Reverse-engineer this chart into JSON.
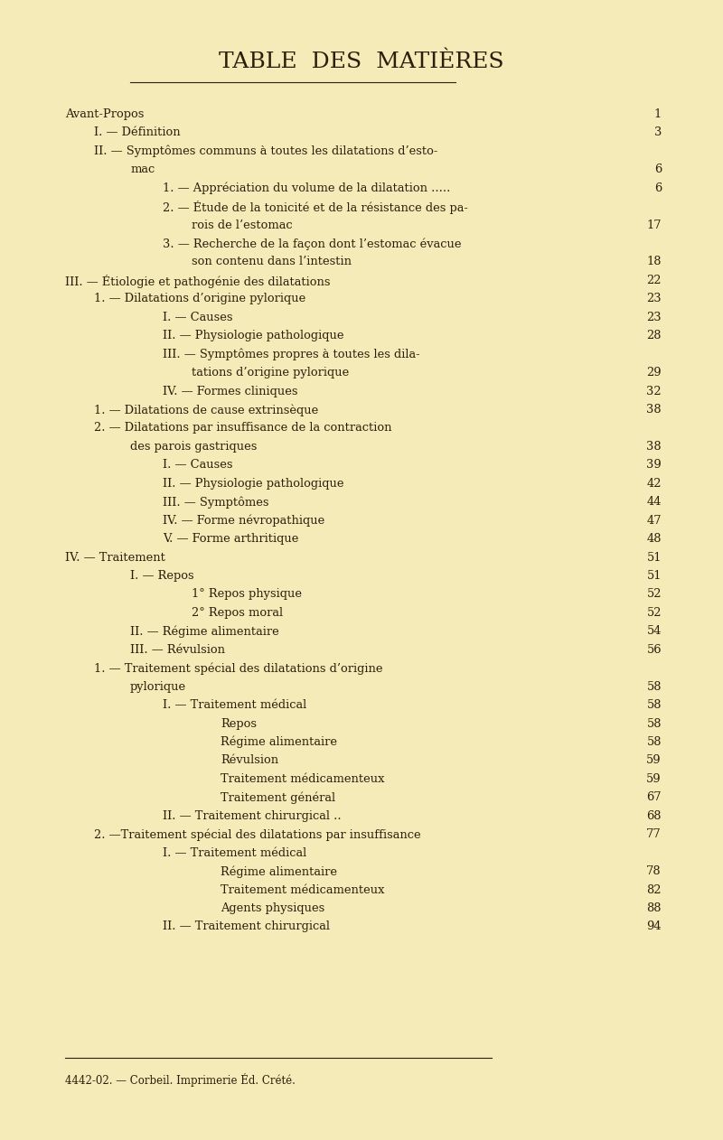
{
  "bg_color": "#f5ebb8",
  "text_color": "#2a1f0a",
  "title": "TABLE  DES  MATIÈRES",
  "title_fontsize": 18,
  "footer": "4442-02. — Corbeil. Imprimerie Éd. Crété.",
  "lines": [
    {
      "indent": 0,
      "text": "Avant-Propos",
      "dots": true,
      "page": "1"
    },
    {
      "indent": 1,
      "text": "I. — Définition",
      "dots": true,
      "page": "3"
    },
    {
      "indent": 1,
      "text": "II. — Symptômes communs à toutes les dilatations d’esto-",
      "dots": false,
      "page": ""
    },
    {
      "indent": 2,
      "text": "mac",
      "dots": true,
      "page": "6"
    },
    {
      "indent": 3,
      "text": "1. — Appréciation du volume de la dilatation .....",
      "dots": false,
      "page": "6"
    },
    {
      "indent": 3,
      "text": "2. — Étude de la tonicité et de la résistance des pa-",
      "dots": false,
      "page": ""
    },
    {
      "indent": 4,
      "text": "rois de l’estomac",
      "dots": true,
      "page": "17"
    },
    {
      "indent": 3,
      "text": "3. — Recherche de la façon dont l’estomac évacue",
      "dots": false,
      "page": ""
    },
    {
      "indent": 4,
      "text": "son contenu dans l’intestin",
      "dots": true,
      "page": "18"
    },
    {
      "indent": 0,
      "text": "III. — Étiologie et pathogénie des dilatations",
      "dots": true,
      "page": "22"
    },
    {
      "indent": 1,
      "text": "1. — Dilatations d’origine pylorique",
      "dots": true,
      "page": "23"
    },
    {
      "indent": 3,
      "text": "I. — Causes",
      "dots": true,
      "page": "23"
    },
    {
      "indent": 3,
      "text": "II. — Physiologie pathologique",
      "dots": true,
      "page": "28"
    },
    {
      "indent": 3,
      "text": "III. — Symptômes propres à toutes les dila-",
      "dots": false,
      "page": ""
    },
    {
      "indent": 4,
      "text": "tations d’origine pylorique",
      "dots": true,
      "page": "29"
    },
    {
      "indent": 3,
      "text": "IV. — Formes cliniques",
      "dots": true,
      "page": "32"
    },
    {
      "indent": 1,
      "text": "1. — Dilatations de cause extrinsèque",
      "dots": true,
      "page": "38"
    },
    {
      "indent": 1,
      "text": "2. — Dilatations par insuffisance de la contraction",
      "dots": false,
      "page": ""
    },
    {
      "indent": 2,
      "text": "des parois gastriques",
      "dots": true,
      "page": "38"
    },
    {
      "indent": 3,
      "text": "I. — Causes",
      "dots": true,
      "page": "39"
    },
    {
      "indent": 3,
      "text": "II. — Physiologie pathologique",
      "dots": true,
      "page": "42"
    },
    {
      "indent": 3,
      "text": "III. — Symptômes",
      "dots": true,
      "page": "44"
    },
    {
      "indent": 3,
      "text": "IV. — Forme névropathique",
      "dots": true,
      "page": "47"
    },
    {
      "indent": 3,
      "text": "V. — Forme arthritique",
      "dots": true,
      "page": "48"
    },
    {
      "indent": 0,
      "text": "IV. — Traitement",
      "dots": true,
      "page": "51"
    },
    {
      "indent": 2,
      "text": "I. — Repos",
      "dots": true,
      "page": "51"
    },
    {
      "indent": 4,
      "text": "1° Repos physique",
      "dots": true,
      "page": "52"
    },
    {
      "indent": 4,
      "text": "2° Repos moral",
      "dots": true,
      "page": "52"
    },
    {
      "indent": 2,
      "text": "II. — Régime alimentaire",
      "dots": true,
      "page": "54"
    },
    {
      "indent": 2,
      "text": "III. — Révulsion",
      "dots": true,
      "page": "56"
    },
    {
      "indent": 1,
      "text": "1. — Traitement spécial des dilatations d’origine",
      "dots": false,
      "page": ""
    },
    {
      "indent": 2,
      "text": "pylorique",
      "dots": true,
      "page": "58"
    },
    {
      "indent": 3,
      "text": "I. — Traitement médical",
      "dots": true,
      "page": "58"
    },
    {
      "indent": 5,
      "text": "Repos",
      "dots": true,
      "page": "58"
    },
    {
      "indent": 5,
      "text": "Régime alimentaire",
      "dots": true,
      "page": "58"
    },
    {
      "indent": 5,
      "text": "Révulsion",
      "dots": true,
      "page": "59"
    },
    {
      "indent": 5,
      "text": "Traitement médicamenteux",
      "dots": true,
      "page": "59"
    },
    {
      "indent": 5,
      "text": "Traitement général",
      "dots": true,
      "page": "67"
    },
    {
      "indent": 3,
      "text": "II. — Traitement chirurgical ..",
      "dots": true,
      "page": "68"
    },
    {
      "indent": 1,
      "text": "2. —Traitement spécial des dilatations par insuffisance",
      "dots": false,
      "page": "77"
    },
    {
      "indent": 3,
      "text": "I. — Traitement médical",
      "dots": false,
      "page": ""
    },
    {
      "indent": 5,
      "text": "Régime alimentaire",
      "dots": true,
      "page": "78"
    },
    {
      "indent": 5,
      "text": "Traitement médicamenteux",
      "dots": true,
      "page": "82"
    },
    {
      "indent": 5,
      "text": "Agents physiques",
      "dots": true,
      "page": "88"
    },
    {
      "indent": 3,
      "text": "II. — Traitement chirurgical",
      "dots": true,
      "page": "94"
    }
  ]
}
